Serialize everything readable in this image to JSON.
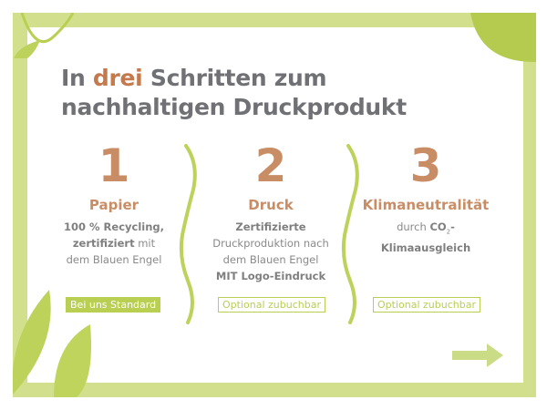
{
  "title": {
    "part1": "In ",
    "accent": "drei",
    "part2": " Schritten zum",
    "line2": "nachhaltigen Druckprodukt"
  },
  "colors": {
    "accent": "#c47a4c",
    "green": "#b8cf52",
    "frame": "#d2e08e",
    "text": "#707174"
  },
  "steps": [
    {
      "number": "1",
      "heading": "Papier",
      "lines": [
        "100 % Recycling,",
        "zertifiziert",
        " mit",
        "dem Blauen Engel"
      ],
      "badge": "Bei uns Standard"
    },
    {
      "number": "2",
      "heading": "Druck",
      "lines": [
        "Zertifizierte",
        "Druckproduktion nach",
        "dem Blauen Engel",
        "MIT Logo-Eindruck"
      ],
      "badge": "Optional zubuchbar"
    },
    {
      "number": "3",
      "heading": "Klimaneutralität",
      "lines": [
        "durch ",
        "CO",
        "2",
        "-",
        "Klimaausgleich"
      ],
      "badge": "Optional zubuchbar"
    }
  ],
  "icons": {
    "next": "arrow-right-icon",
    "divider": "wave-divider-icon",
    "leaf": "leaf-icon"
  }
}
